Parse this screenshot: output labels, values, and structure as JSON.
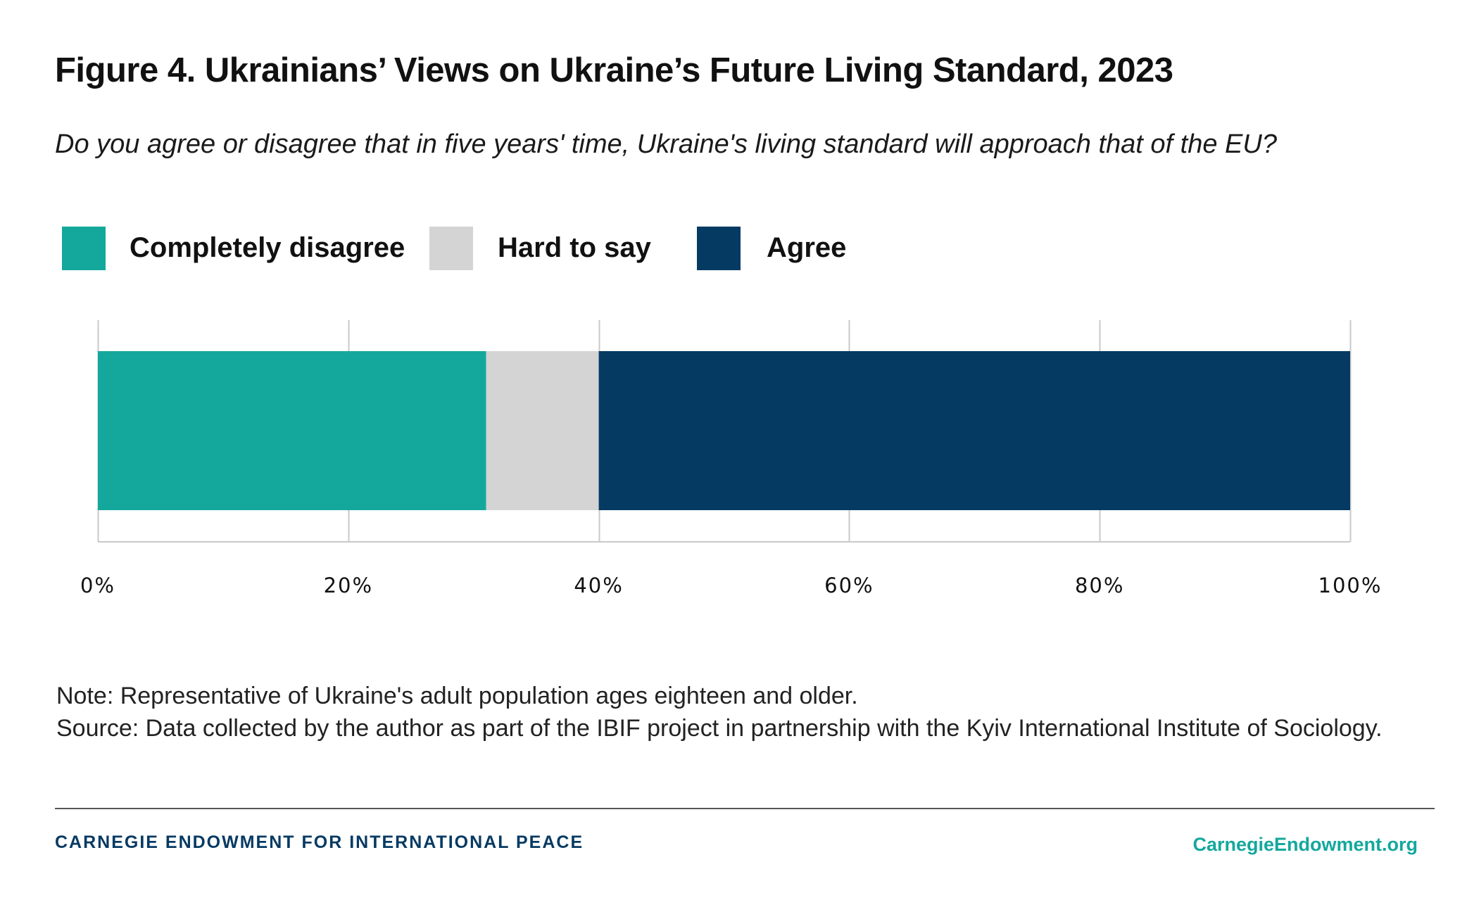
{
  "page": {
    "title": "Figure 4. Ukrainians’ Views on Ukraine’s Future Living Standard, 2023",
    "subtitle": "Do you agree or disagree that in five years' time, Ukraine's living standard will approach that of the EU?",
    "note": "Note: Representative of Ukraine's adult population ages eighteen and older.",
    "source": "Source: Data collected by the author as part of the IBIF project in partnership with the Kyiv International Institute of Sociology.",
    "footer_org": "CARNEGIE ENDOWMENT FOR INTERNATIONAL PEACE",
    "footer_url": "CarnegieEndowment.org"
  },
  "chart_data": {
    "type": "bar",
    "orientation": "horizontal",
    "stacked": true,
    "title": "Figure 4. Ukrainians’ Views on Ukraine’s Future Living Standard, 2023",
    "subtitle": "Do you agree or disagree that in five years' time, Ukraine's living standard will approach that of the EU?",
    "categories": [
      ""
    ],
    "series": [
      {
        "name": "Completely disagree",
        "values": [
          31
        ],
        "color": "#14a89d"
      },
      {
        "name": "Hard to say",
        "values": [
          9
        ],
        "color": "#d4d4d4"
      },
      {
        "name": "Agree",
        "values": [
          60
        ],
        "color": "#053a63"
      }
    ],
    "xlim": [
      0,
      100
    ],
    "x_ticks": [
      0,
      20,
      40,
      60,
      80,
      100
    ],
    "x_tick_labels": [
      "0%",
      "20%",
      "40%",
      "60%",
      "80%",
      "100%"
    ],
    "grid": true,
    "legend_position": "top-left"
  }
}
